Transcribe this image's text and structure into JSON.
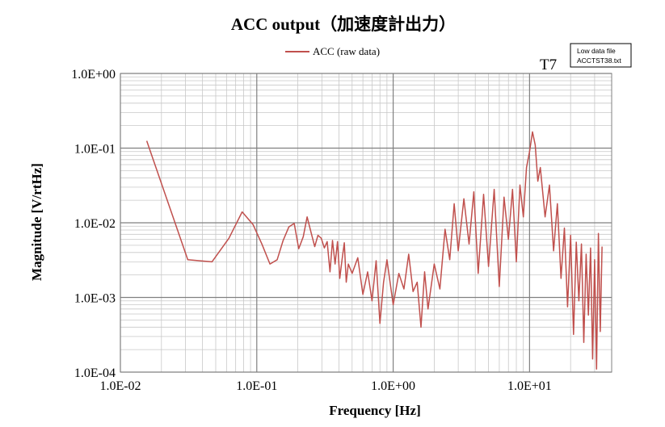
{
  "chart_data": {
    "type": "line",
    "title": "ACC output（加速度計出力）",
    "xlabel": "Frequency [Hz]",
    "ylabel": "Magnitude [V/rtHz]",
    "x_scale": "log",
    "y_scale": "log",
    "xlim": [
      0.01,
      40
    ],
    "ylim": [
      0.0001,
      1
    ],
    "x_ticks": [
      "1.0E-02",
      "1.0E-01",
      "1.0E+00",
      "1.0E+01"
    ],
    "y_ticks": [
      "1.0E+00",
      "1.0E-01",
      "1.0E-02",
      "1.0E-03",
      "1.0E-04"
    ],
    "grid": true,
    "legend_position": "top-center",
    "series": [
      {
        "name": "ACC (raw data)",
        "color": "#c0504d",
        "points": [
          [
            0.0156,
            0.125
          ],
          [
            0.0312,
            0.0032
          ],
          [
            0.0469,
            0.003
          ],
          [
            0.0625,
            0.0062
          ],
          [
            0.0781,
            0.014
          ],
          [
            0.0938,
            0.0095
          ],
          [
            0.109,
            0.0052
          ],
          [
            0.125,
            0.0028
          ],
          [
            0.141,
            0.0032
          ],
          [
            0.156,
            0.0058
          ],
          [
            0.172,
            0.0088
          ],
          [
            0.188,
            0.0098
          ],
          [
            0.203,
            0.0045
          ],
          [
            0.219,
            0.0065
          ],
          [
            0.234,
            0.012
          ],
          [
            0.25,
            0.0074
          ],
          [
            0.266,
            0.0048
          ],
          [
            0.281,
            0.0068
          ],
          [
            0.297,
            0.0062
          ],
          [
            0.313,
            0.0046
          ],
          [
            0.328,
            0.0056
          ],
          [
            0.344,
            0.0022
          ],
          [
            0.359,
            0.0058
          ],
          [
            0.375,
            0.0028
          ],
          [
            0.391,
            0.0056
          ],
          [
            0.406,
            0.0018
          ],
          [
            0.422,
            0.0032
          ],
          [
            0.438,
            0.0054
          ],
          [
            0.453,
            0.0016
          ],
          [
            0.469,
            0.0028
          ],
          [
            0.5,
            0.0021
          ],
          [
            0.55,
            0.0034
          ],
          [
            0.6,
            0.0011
          ],
          [
            0.65,
            0.0022
          ],
          [
            0.7,
            0.0009
          ],
          [
            0.75,
            0.0031
          ],
          [
            0.8,
            0.00045
          ],
          [
            0.85,
            0.0016
          ],
          [
            0.9,
            0.0032
          ],
          [
            1.0,
            0.0008
          ],
          [
            1.1,
            0.0021
          ],
          [
            1.2,
            0.0013
          ],
          [
            1.3,
            0.0038
          ],
          [
            1.4,
            0.0012
          ],
          [
            1.5,
            0.0016
          ],
          [
            1.6,
            0.0004
          ],
          [
            1.7,
            0.0022
          ],
          [
            1.8,
            0.0007
          ],
          [
            2.0,
            0.0028
          ],
          [
            2.2,
            0.0013
          ],
          [
            2.4,
            0.0082
          ],
          [
            2.6,
            0.0032
          ],
          [
            2.8,
            0.018
          ],
          [
            3.0,
            0.0042
          ],
          [
            3.3,
            0.021
          ],
          [
            3.6,
            0.0052
          ],
          [
            3.9,
            0.026
          ],
          [
            4.2,
            0.0021
          ],
          [
            4.6,
            0.024
          ],
          [
            5.0,
            0.0026
          ],
          [
            5.5,
            0.028
          ],
          [
            6.0,
            0.0014
          ],
          [
            6.5,
            0.022
          ],
          [
            7.0,
            0.006
          ],
          [
            7.5,
            0.028
          ],
          [
            8.0,
            0.003
          ],
          [
            8.5,
            0.032
          ],
          [
            9.0,
            0.012
          ],
          [
            9.5,
            0.055
          ],
          [
            10.0,
            0.09
          ],
          [
            10.5,
            0.165
          ],
          [
            11.0,
            0.11
          ],
          [
            11.5,
            0.036
          ],
          [
            12.0,
            0.055
          ],
          [
            13.0,
            0.012
          ],
          [
            14.0,
            0.032
          ],
          [
            15.0,
            0.0042
          ],
          [
            16.0,
            0.018
          ],
          [
            17.0,
            0.0018
          ],
          [
            18.0,
            0.0085
          ],
          [
            19.0,
            0.00075
          ],
          [
            20.0,
            0.0068
          ],
          [
            21.0,
            0.00032
          ],
          [
            22.0,
            0.0055
          ],
          [
            23.0,
            0.0009
          ],
          [
            24.0,
            0.0052
          ],
          [
            25.0,
            0.00025
          ],
          [
            26.0,
            0.0038
          ],
          [
            27.0,
            0.00058
          ],
          [
            28.0,
            0.0046
          ],
          [
            29.0,
            0.00015
          ],
          [
            30.0,
            0.0032
          ],
          [
            31.0,
            0.00011
          ],
          [
            32.0,
            0.0072
          ],
          [
            33.0,
            0.00035
          ],
          [
            34.0,
            0.0048
          ]
        ]
      }
    ],
    "annotations": {
      "label": "T7",
      "note_lines": [
        "Low data file",
        "ACCTST38.txt"
      ]
    }
  }
}
